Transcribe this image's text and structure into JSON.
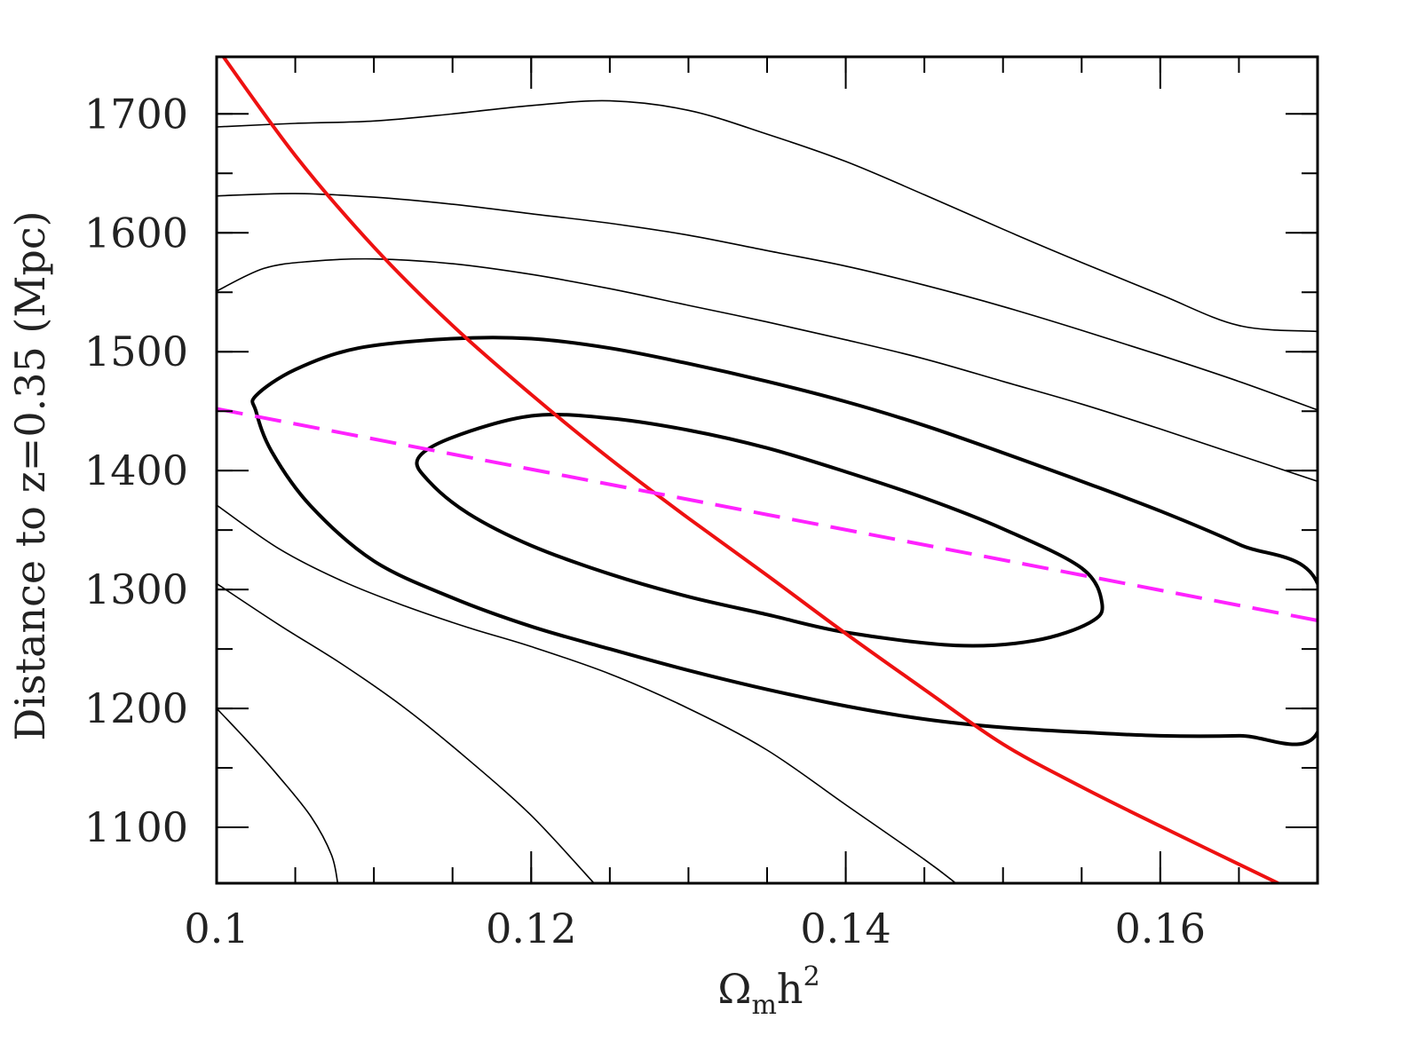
{
  "chart_data": {
    "type": "line",
    "title": "",
    "xlabel": {
      "main": "Ω",
      "sub": "m",
      "tail": "h",
      "sup": "2"
    },
    "ylabel": "Distance to z=0.35 (Mpc)",
    "xlim": [
      0.1,
      0.17
    ],
    "ylim": [
      1053,
      1748
    ],
    "x_ticks": [
      {
        "value": 0.1,
        "label": "0.1"
      },
      {
        "value": 0.12,
        "label": "0.12"
      },
      {
        "value": 0.14,
        "label": "0.14"
      },
      {
        "value": 0.16,
        "label": "0.16"
      }
    ],
    "y_ticks": [
      {
        "value": 1100,
        "label": "1100"
      },
      {
        "value": 1200,
        "label": "1200"
      },
      {
        "value": 1300,
        "label": "1300"
      },
      {
        "value": 1400,
        "label": "1400"
      },
      {
        "value": 1500,
        "label": "1500"
      },
      {
        "value": 1600,
        "label": "1600"
      },
      {
        "value": 1700,
        "label": "1700"
      }
    ],
    "x_minor_step": 0.005,
    "y_minor_step": 50,
    "grid": false,
    "colors": {
      "axes": "#000000",
      "contour": "#000000",
      "solid_curve": "#ee1111",
      "dashed_curve": "#ff22ff"
    },
    "series": [
      {
        "style": "thin",
        "x": [
          0.1,
          0.105,
          0.11,
          0.115,
          0.12,
          0.125,
          0.13,
          0.135,
          0.14,
          0.145,
          0.15,
          0.155,
          0.16,
          0.165,
          0.17
        ],
        "y": [
          1689,
          1692,
          1694,
          1700,
          1707,
          1711,
          1703,
          1683,
          1660,
          1632,
          1603,
          1575,
          1548,
          1522,
          1517
        ]
      },
      {
        "style": "thin",
        "x": [
          0.1,
          0.105,
          0.11,
          0.115,
          0.12,
          0.125,
          0.13,
          0.135,
          0.14,
          0.145,
          0.15,
          0.155,
          0.16,
          0.165,
          0.17
        ],
        "y": [
          1631,
          1633,
          1630,
          1624,
          1616,
          1608,
          1598,
          1585,
          1572,
          1556,
          1538,
          1518,
          1497,
          1475,
          1451
        ]
      },
      {
        "style": "thin",
        "x": [
          0.1,
          0.103,
          0.106,
          0.11,
          0.115,
          0.12,
          0.125,
          0.13,
          0.135,
          0.14,
          0.145,
          0.15,
          0.155,
          0.16,
          0.165,
          0.17
        ],
        "y": [
          1551,
          1570,
          1576,
          1578,
          1574,
          1565,
          1553,
          1539,
          1525,
          1510,
          1494,
          1475,
          1456,
          1435,
          1413,
          1391
        ]
      },
      {
        "style": "thick",
        "closed": true,
        "x": [
          0.1025,
          0.105,
          0.109,
          0.115,
          0.12,
          0.125,
          0.13,
          0.135,
          0.14,
          0.145,
          0.15,
          0.155,
          0.16,
          0.165,
          0.17,
          0.17,
          0.165,
          0.16,
          0.155,
          0.15,
          0.145,
          0.14,
          0.135,
          0.13,
          0.125,
          0.12,
          0.115,
          0.11,
          0.106,
          0.1035,
          0.1025
        ],
        "y": [
          1463,
          1485,
          1503,
          1511,
          1511,
          1503,
          1490,
          1475,
          1458,
          1438,
          1415,
          1391,
          1366,
          1338,
          1305,
          1180,
          1177,
          1177,
          1180,
          1184,
          1191,
          1202,
          1216,
          1232,
          1250,
          1269,
          1293,
          1324,
          1370,
          1416,
          1450
        ]
      },
      {
        "style": "thick",
        "closed": true,
        "x": [
          0.1128,
          0.115,
          0.12,
          0.125,
          0.13,
          0.135,
          0.14,
          0.145,
          0.15,
          0.155,
          0.1563,
          0.1555,
          0.152,
          0.147,
          0.14,
          0.135,
          0.13,
          0.125,
          0.12,
          0.116,
          0.1135,
          0.1128
        ],
        "y": [
          1410,
          1428,
          1446,
          1444,
          1434,
          1419,
          1399,
          1377,
          1351,
          1318,
          1288,
          1272,
          1257,
          1253,
          1264,
          1279,
          1294,
          1313,
          1337,
          1364,
          1391,
          1410
        ]
      },
      {
        "style": "thin",
        "x": [
          0.1,
          0.104,
          0.108,
          0.112,
          0.116,
          0.12,
          0.125,
          0.13,
          0.135,
          0.14,
          0.145,
          0.147
        ],
        "y": [
          1371,
          1334,
          1307,
          1286,
          1268,
          1252,
          1229,
          1200,
          1165,
          1119,
          1073,
          1053
        ]
      },
      {
        "style": "thin",
        "x": [
          0.1,
          0.104,
          0.108,
          0.112,
          0.116,
          0.12,
          0.124
        ],
        "y": [
          1305,
          1270,
          1237,
          1200,
          1157,
          1110,
          1053
        ]
      },
      {
        "style": "thin",
        "x": [
          0.1,
          0.102,
          0.104,
          0.106,
          0.1073,
          0.1077
        ],
        "y": [
          1200,
          1172,
          1142,
          1109,
          1077,
          1053
        ]
      },
      {
        "style": "red",
        "x": [
          0.1,
          0.105,
          0.11,
          0.115,
          0.12,
          0.125,
          0.13,
          0.135,
          0.14,
          0.145,
          0.15,
          0.155,
          0.16,
          0.1675
        ],
        "y": [
          1756,
          1665,
          1588,
          1522,
          1464,
          1410,
          1360,
          1312,
          1263,
          1216,
          1170,
          1134,
          1101,
          1053
        ]
      },
      {
        "style": "dashed",
        "x": [
          0.1,
          0.17
        ],
        "y": [
          1452,
          1274
        ]
      }
    ]
  }
}
